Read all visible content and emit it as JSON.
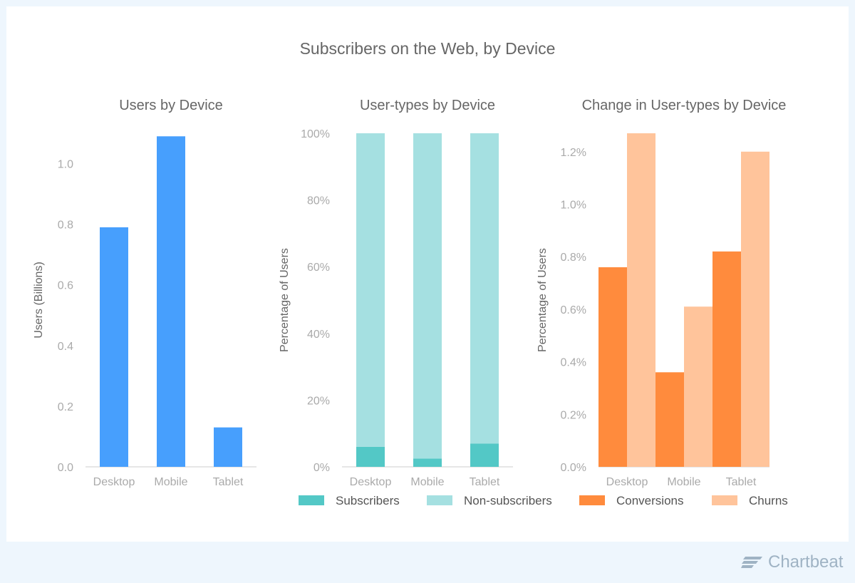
{
  "title": "Subscribers on the Web, by Device",
  "brand": "Chartbeat",
  "colors": {
    "users": "#479ffd",
    "subscribers": "#53c8c6",
    "nonsubscribers": "#a5e0e1",
    "conversions": "#ff8b3d",
    "churns": "#ffc49b"
  },
  "legend": [
    {
      "label": "Subscribers",
      "color": "#53c8c6"
    },
    {
      "label": "Non-subscribers",
      "color": "#a5e0e1"
    },
    {
      "label": "Conversions",
      "color": "#ff8b3d"
    },
    {
      "label": "Churns",
      "color": "#ffc49b"
    }
  ],
  "chart_data": [
    {
      "type": "bar",
      "title": "Users by Device",
      "ylabel": "Users (Billions)",
      "categories": [
        "Desktop",
        "Mobile",
        "Tablet"
      ],
      "series": [
        {
          "values": [
            0.79,
            1.09,
            0.13
          ],
          "color": "#479ffd"
        }
      ],
      "ylim": [
        0,
        1.1
      ],
      "yticks": [
        "0.0",
        "0.2",
        "0.4",
        "0.6",
        "0.8",
        "1.0"
      ],
      "ytick_values": [
        0,
        0.2,
        0.4,
        0.6,
        0.8,
        1.0
      ]
    },
    {
      "type": "bar",
      "stacked": true,
      "title": "User-types by Device",
      "ylabel": "Percentage of Users",
      "categories": [
        "Desktop",
        "Mobile",
        "Tablet"
      ],
      "series": [
        {
          "name": "Subscribers",
          "values": [
            6,
            2.5,
            7
          ],
          "color": "#53c8c6"
        },
        {
          "name": "Non-subscribers",
          "values": [
            94,
            97.5,
            93
          ],
          "color": "#a5e0e1"
        }
      ],
      "ylim": [
        0,
        100
      ],
      "yticks": [
        "0%",
        "20%",
        "40%",
        "60%",
        "80%",
        "100%"
      ],
      "ytick_values": [
        0,
        20,
        40,
        60,
        80,
        100
      ]
    },
    {
      "type": "bar",
      "title": "Change in User-types by Device",
      "ylabel": "Percentage of Users",
      "categories": [
        "Desktop",
        "Mobile",
        "Tablet"
      ],
      "series": [
        {
          "name": "Conversions",
          "values": [
            0.76,
            0.36,
            0.82
          ],
          "color": "#ff8b3d"
        },
        {
          "name": "Churns",
          "values": [
            1.27,
            0.61,
            1.2
          ],
          "color": "#ffc49b"
        }
      ],
      "ylim": [
        0,
        1.27
      ],
      "yticks": [
        "0.0%",
        "0.2%",
        "0.4%",
        "0.6%",
        "0.8%",
        "1.0%",
        "1.2%"
      ],
      "ytick_values": [
        0,
        0.2,
        0.4,
        0.6,
        0.8,
        1.0,
        1.2
      ]
    }
  ]
}
